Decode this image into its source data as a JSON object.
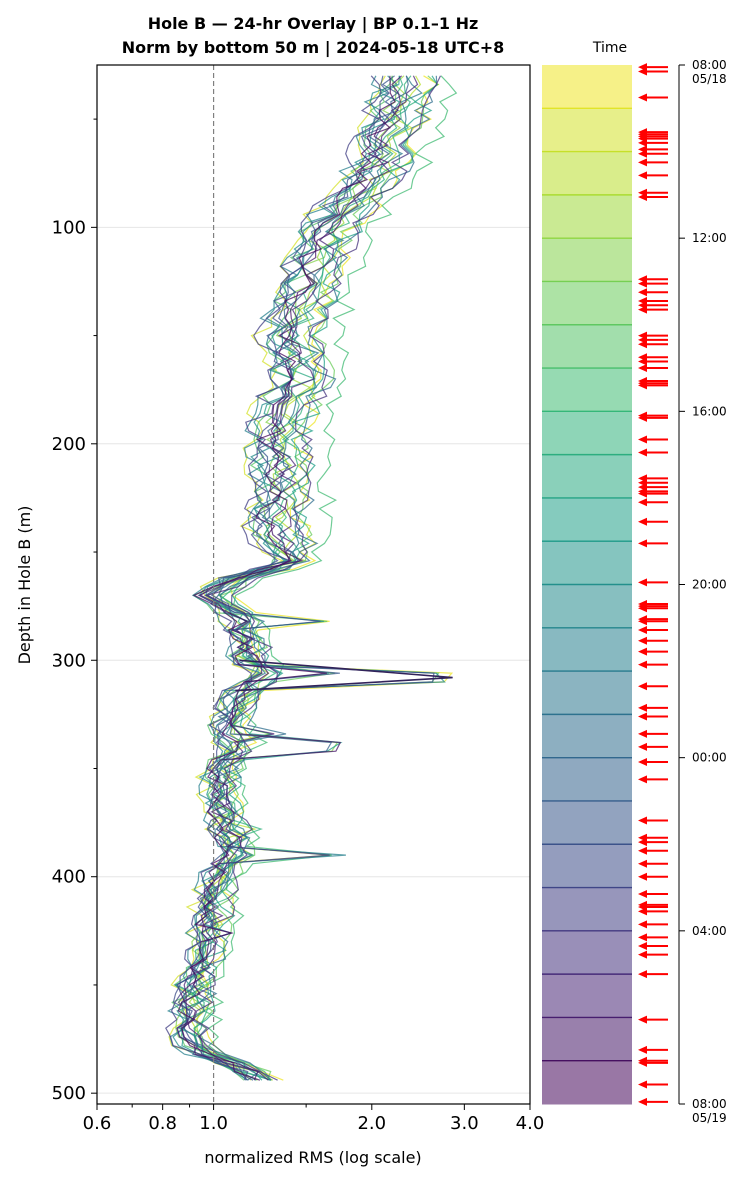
{
  "chart_data": {
    "type": "line",
    "title_line1": "Hole B — 24-hr Overlay  |  BP 0.1–1 Hz",
    "title_line2": "Norm by bottom 50 m  |  2024-05-18 UTC+8",
    "xlabel": "normalized RMS  (log scale)",
    "ylabel": "Depth in Hole B (m)",
    "xscale": "log",
    "xlim": [
      0.6,
      4.0
    ],
    "ylim": [
      505,
      25
    ],
    "x_ticks": [
      0.6,
      0.8,
      1.0,
      2.0,
      3.0,
      4.0
    ],
    "x_tick_labels": [
      "0.6",
      "0.8",
      "1.0",
      "2.0",
      "3.0",
      "4.0"
    ],
    "y_ticks": [
      100,
      200,
      300,
      400,
      500
    ],
    "y_tick_labels": [
      "100",
      "200",
      "300",
      "400",
      "500"
    ],
    "y_minor_ticks": [
      50,
      150,
      250,
      350,
      450
    ],
    "grid": "horizontal at major y ticks",
    "reference_line": {
      "x": 1.0,
      "style": "dashed",
      "color": "#808080"
    },
    "representative_profile": {
      "depth": [
        30,
        40,
        50,
        60,
        70,
        80,
        90,
        100,
        110,
        120,
        130,
        140,
        150,
        160,
        170,
        180,
        190,
        200,
        210,
        220,
        230,
        240,
        250,
        255,
        262,
        270,
        280,
        290,
        300,
        306,
        312,
        320,
        330,
        340,
        350,
        360,
        370,
        380,
        390,
        400,
        410,
        420,
        430,
        440,
        450,
        460,
        470,
        480,
        486,
        490,
        495,
        497
      ],
      "rms": [
        2.25,
        2.2,
        2.15,
        2.05,
        2.0,
        1.9,
        1.75,
        1.6,
        1.55,
        1.5,
        1.45,
        1.4,
        1.35,
        1.4,
        1.42,
        1.35,
        1.3,
        1.28,
        1.3,
        1.3,
        1.28,
        1.27,
        1.35,
        1.4,
        1.1,
        0.97,
        1.1,
        1.15,
        1.14,
        1.22,
        1.15,
        1.08,
        1.05,
        1.08,
        1.02,
        1.0,
        1.03,
        1.05,
        1.08,
        1.0,
        0.98,
        0.97,
        0.95,
        0.93,
        0.9,
        0.9,
        0.88,
        0.92,
        1.05,
        1.15,
        1.22,
        1.25
      ]
    },
    "spikes": [
      {
        "depth": 308,
        "rms": 2.85
      },
      {
        "depth": 307,
        "rms": 1.78
      },
      {
        "depth": 340,
        "rms": 1.8
      },
      {
        "depth": 334,
        "rms": 1.4
      },
      {
        "depth": 378,
        "rms": 1.25
      },
      {
        "depth": 390,
        "rms": 1.8
      },
      {
        "depth": 282,
        "rms": 1.75
      },
      {
        "depth": 427,
        "rms": 1.1
      }
    ],
    "series_times": [
      "08:00",
      "09:00",
      "10:00",
      "11:00",
      "12:00",
      "13:00",
      "14:00",
      "15:00",
      "16:00",
      "17:00",
      "18:00",
      "19:00",
      "20:00",
      "21:00",
      "22:00",
      "23:00",
      "00:00",
      "01:00",
      "02:00",
      "03:00",
      "04:00",
      "05:00",
      "06:00",
      "07:00"
    ],
    "colorbar": {
      "title": "Time",
      "ticks": [
        "08:00",
        "12:00",
        "16:00",
        "20:00",
        "00:00",
        "04:00",
        "08:00"
      ],
      "tick_hours": [
        0,
        4,
        8,
        12,
        16,
        20,
        24
      ],
      "start_date": "05/18",
      "end_date": "05/19",
      "segments": 24,
      "colormap": "viridis (reversed, top = yellow)"
    },
    "event_markers_hours": [
      0.05,
      0.15,
      0.75,
      1.55,
      1.6,
      1.65,
      1.7,
      1.8,
      1.95,
      2.05,
      2.25,
      2.55,
      2.95,
      3.05,
      4.95,
      5.05,
      5.25,
      5.45,
      5.55,
      5.65,
      6.25,
      6.35,
      6.45,
      6.75,
      6.85,
      7.0,
      7.3,
      7.35,
      7.4,
      8.1,
      8.15,
      8.65,
      8.95,
      9.55,
      9.65,
      9.75,
      9.85,
      9.9,
      10.1,
      10.55,
      11.05,
      11.95,
      12.45,
      12.5,
      12.55,
      12.8,
      12.85,
      13.05,
      13.3,
      13.55,
      13.85,
      14.35,
      14.85,
      15.05,
      15.45,
      15.75,
      16.1,
      16.5,
      17.45,
      17.85,
      17.95,
      18.15,
      18.45,
      18.75,
      19.15,
      19.4,
      19.45,
      19.55,
      19.85,
      20.15,
      20.35,
      20.55,
      21.0,
      22.05,
      22.75,
      23.0,
      23.05,
      23.55,
      23.95
    ],
    "event_marker_color": "#ff0000"
  }
}
